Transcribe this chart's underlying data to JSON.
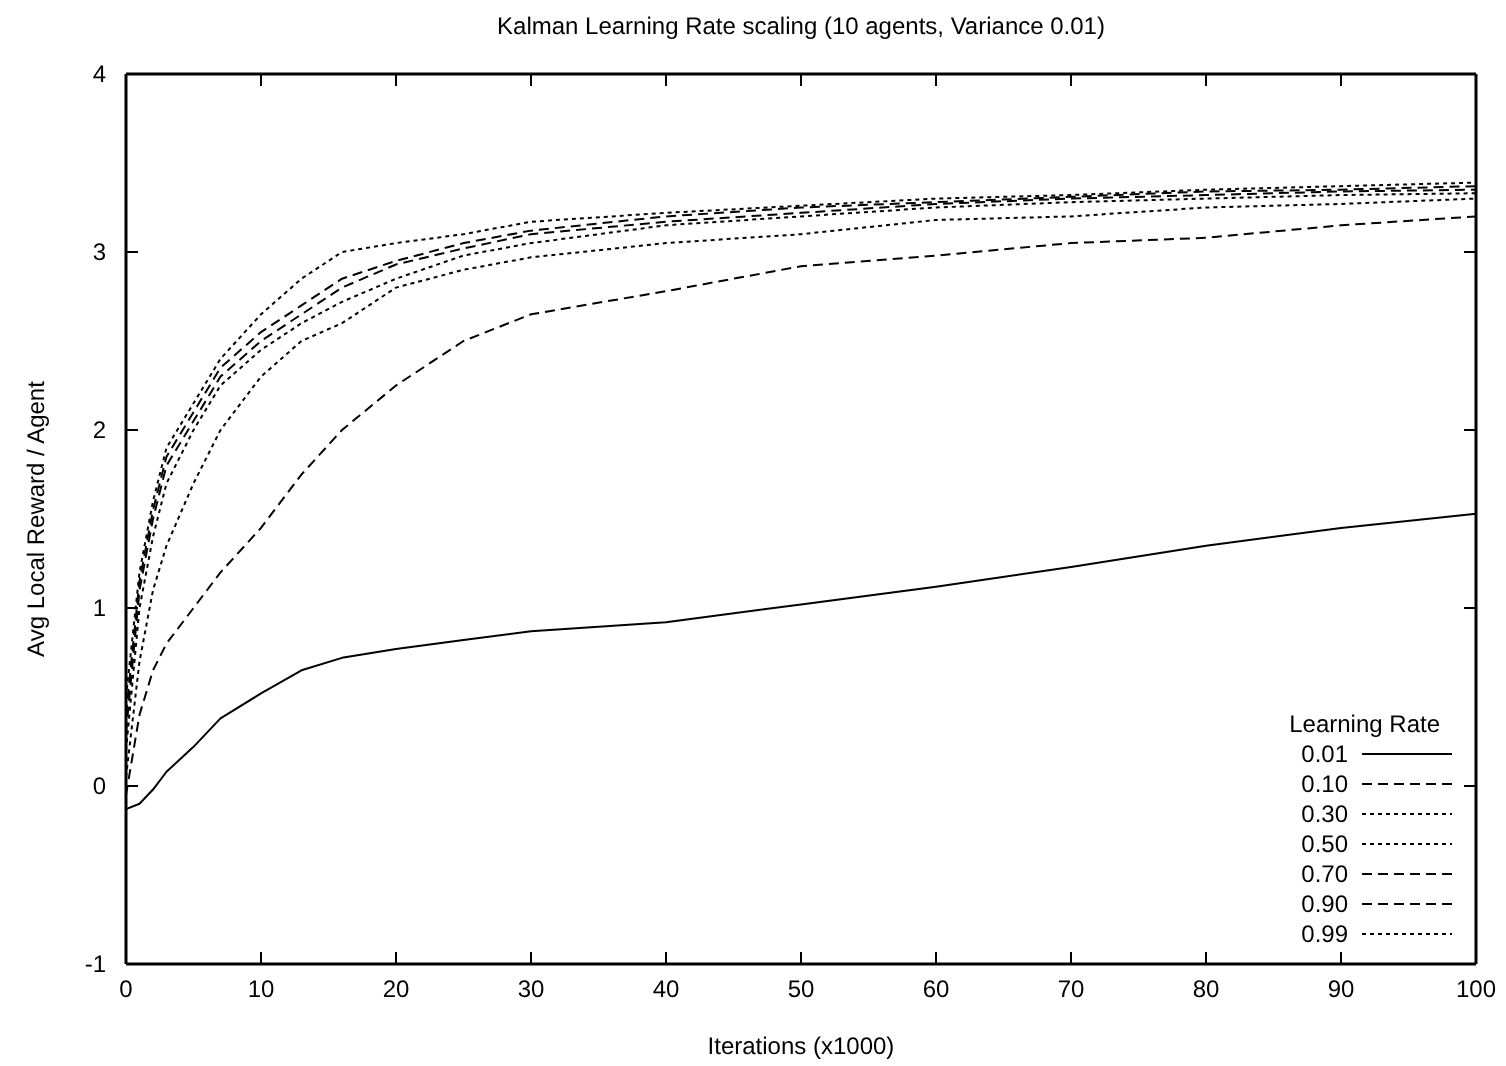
{
  "chart_data": {
    "type": "line",
    "title": "Kalman Learning Rate scaling (10 agents, Variance 0.01)",
    "xlabel": "Iterations (x1000)",
    "ylabel": "Avg Local Reward / Agent",
    "legend_title": "Learning Rate",
    "legend": "bottom right",
    "grid": false,
    "xlim": [
      0,
      100
    ],
    "ylim": [
      -1,
      4
    ],
    "xticks": [
      0,
      10,
      20,
      30,
      40,
      50,
      60,
      70,
      80,
      90,
      100
    ],
    "yticks": [
      -1,
      0,
      1,
      2,
      3,
      4
    ],
    "x": [
      0,
      1,
      2,
      3,
      5,
      7,
      10,
      13,
      16,
      20,
      25,
      30,
      40,
      50,
      60,
      70,
      80,
      90,
      100
    ],
    "series": [
      {
        "name": "0.01",
        "color": "#000000",
        "line_style": "solid",
        "values": [
          -0.13,
          -0.1,
          -0.02,
          0.08,
          0.22,
          0.38,
          0.52,
          0.65,
          0.72,
          0.77,
          0.82,
          0.87,
          0.92,
          1.02,
          1.12,
          1.23,
          1.35,
          1.45,
          1.53
        ]
      },
      {
        "name": "0.10",
        "color": "#000000",
        "line_style": "dashed",
        "values": [
          -0.05,
          0.4,
          0.65,
          0.8,
          1.0,
          1.2,
          1.45,
          1.75,
          2.0,
          2.25,
          2.5,
          2.65,
          2.78,
          2.92,
          2.98,
          3.05,
          3.08,
          3.15,
          3.2
        ]
      },
      {
        "name": "0.30",
        "color": "#000000",
        "line_style": "dotted",
        "values": [
          0.05,
          0.7,
          1.1,
          1.35,
          1.7,
          2.0,
          2.3,
          2.5,
          2.6,
          2.8,
          2.9,
          2.97,
          3.05,
          3.1,
          3.18,
          3.2,
          3.25,
          3.27,
          3.3
        ]
      },
      {
        "name": "0.50",
        "color": "#000000",
        "line_style": "dotted",
        "values": [
          0.2,
          1.0,
          1.4,
          1.7,
          2.0,
          2.25,
          2.45,
          2.6,
          2.72,
          2.85,
          2.98,
          3.05,
          3.15,
          3.2,
          3.25,
          3.28,
          3.3,
          3.32,
          3.33
        ]
      },
      {
        "name": "0.70",
        "color": "#000000",
        "line_style": "dashed",
        "values": [
          0.3,
          1.1,
          1.5,
          1.8,
          2.05,
          2.3,
          2.5,
          2.65,
          2.8,
          2.93,
          3.02,
          3.1,
          3.17,
          3.22,
          3.27,
          3.3,
          3.32,
          3.34,
          3.35
        ]
      },
      {
        "name": "0.90",
        "color": "#000000",
        "line_style": "dashed",
        "values": [
          0.4,
          1.15,
          1.55,
          1.85,
          2.1,
          2.35,
          2.55,
          2.7,
          2.85,
          2.95,
          3.05,
          3.12,
          3.2,
          3.25,
          3.28,
          3.31,
          3.34,
          3.35,
          3.37
        ]
      },
      {
        "name": "0.99",
        "color": "#000000",
        "line_style": "dotted",
        "values": [
          0.5,
          1.2,
          1.6,
          1.9,
          2.15,
          2.4,
          2.65,
          2.85,
          3.0,
          3.05,
          3.1,
          3.17,
          3.22,
          3.26,
          3.3,
          3.32,
          3.35,
          3.37,
          3.39
        ]
      }
    ]
  }
}
